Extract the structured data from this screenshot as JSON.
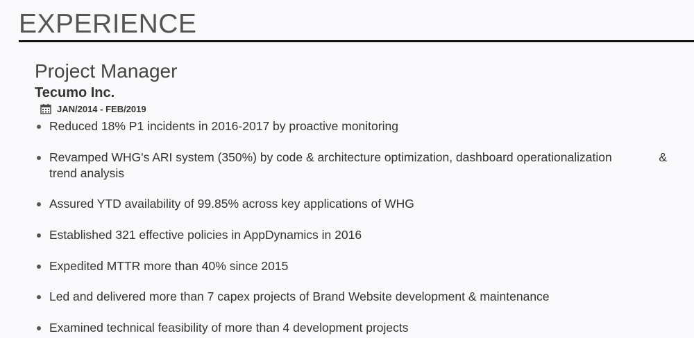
{
  "section": {
    "title": "EXPERIENCE"
  },
  "job": {
    "title": "Project Manager",
    "company": "Tecumo Inc.",
    "dates": "JAN/2014 - FEB/2019",
    "date_icon": "calendar-icon",
    "bullets": [
      "Reduced 18% P1 incidents in 2016-2017 by proactive monitoring",
      "Revamped WHG's ARI system (350%) by code & architecture optimization, dashboard operationalization & trend analysis",
      "Assured YTD availability of 99.85% across key applications of WHG",
      "Established 321 effective policies in AppDynamics in 2016",
      "Expedited MTTR more than 40% since 2015",
      "Led and delivered more than 7 capex projects of Brand Website development & maintenance",
      "Examined technical feasibility of more than 4 development projects"
    ],
    "bullet1_split": {
      "first": "Revamped WHG's ARI system (350%) by code & architecture optimization, dashboard operationalization",
      "amp": "&",
      "second": "trend analysis"
    }
  }
}
